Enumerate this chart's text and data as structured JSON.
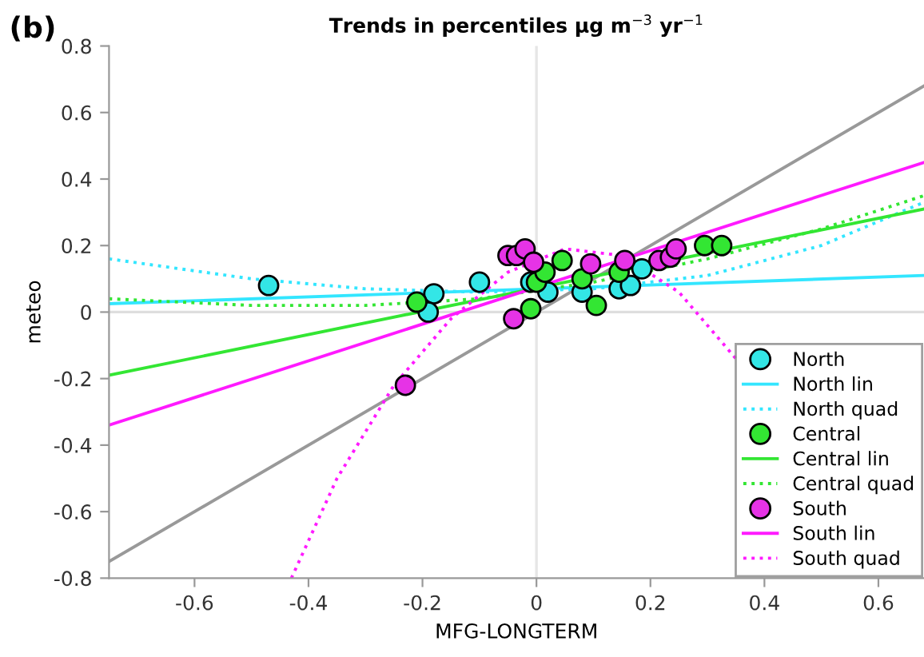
{
  "chart_data": {
    "type": "scatter",
    "title": "Trends in percentiles μg m$^{−3}$ yr$^{−1}$",
    "xlabel": "MFG-LONGTERM",
    "ylabel": "meteo",
    "annotations": [
      "(b)"
    ],
    "xlim": [
      -0.75,
      0.68
    ],
    "ylim": [
      -0.8,
      0.8
    ],
    "xticks": [
      -0.6,
      -0.4,
      -0.2,
      0,
      0.2,
      0.4,
      0.6
    ],
    "yticks": [
      -0.8,
      -0.6,
      -0.4,
      -0.2,
      0,
      0.2,
      0.4,
      0.6,
      0.8
    ],
    "grid": false,
    "legend": "bottom right",
    "marker": "circle",
    "ref_lines": [
      {
        "axis": "x",
        "value": 0,
        "color": "#e6e6e6"
      },
      {
        "axis": "y",
        "value": 0,
        "color": "#dedede"
      }
    ],
    "series": [
      {
        "type": "line",
        "color": "#999999",
        "line_style": "solid",
        "marker": "none",
        "x": [
          -0.75,
          0.68
        ],
        "values": [
          -0.75,
          0.68
        ]
      },
      {
        "name": "North",
        "color": "#33e6e6",
        "x": [
          -0.47,
          -0.18,
          -0.19,
          -0.1,
          -0.01,
          0.02,
          0.08,
          0.145,
          0.165,
          0.185
        ],
        "values": [
          0.08,
          0.055,
          0.0,
          0.09,
          0.09,
          0.06,
          0.06,
          0.07,
          0.08,
          0.13
        ]
      },
      {
        "name": "North lin",
        "type": "line",
        "color": "#33e6ff",
        "line_style": "solid",
        "marker": "none",
        "x": [
          -0.75,
          0.68
        ],
        "values": [
          0.025,
          0.11
        ]
      },
      {
        "name": "North quad",
        "type": "line",
        "color": "#33e6ff",
        "line_style": "dotted",
        "marker": "none",
        "x": [
          -0.75,
          -0.5,
          -0.3,
          -0.1,
          0.1,
          0.3,
          0.5,
          0.68
        ],
        "values": [
          0.16,
          0.1,
          0.07,
          0.06,
          0.07,
          0.11,
          0.2,
          0.33
        ]
      },
      {
        "name": "Central",
        "color": "#33e633",
        "x": [
          -0.21,
          -0.01,
          0.0,
          0.015,
          0.045,
          0.08,
          0.105,
          0.145,
          0.295,
          0.325
        ],
        "values": [
          0.03,
          0.01,
          0.09,
          0.12,
          0.155,
          0.1,
          0.02,
          0.12,
          0.2,
          0.2
        ]
      },
      {
        "name": "Central lin",
        "type": "line",
        "color": "#33e633",
        "line_style": "solid",
        "marker": "none",
        "x": [
          -0.75,
          0.68
        ],
        "values": [
          -0.19,
          0.31
        ]
      },
      {
        "name": "Central quad",
        "type": "line",
        "color": "#33e633",
        "line_style": "dotted",
        "marker": "none",
        "x": [
          -0.75,
          -0.5,
          -0.3,
          -0.1,
          0.1,
          0.3,
          0.5,
          0.68
        ],
        "values": [
          0.04,
          0.02,
          0.02,
          0.04,
          0.09,
          0.16,
          0.25,
          0.35
        ]
      },
      {
        "name": "South",
        "color": "#e633e6",
        "x": [
          -0.23,
          -0.04,
          -0.05,
          -0.035,
          -0.02,
          -0.005,
          0.095,
          0.155,
          0.215,
          0.235,
          0.245
        ],
        "values": [
          -0.22,
          -0.02,
          0.17,
          0.17,
          0.19,
          0.15,
          0.145,
          0.155,
          0.155,
          0.165,
          0.19
        ]
      },
      {
        "name": "South lin",
        "type": "line",
        "color": "#ff1aff",
        "line_style": "solid",
        "marker": "none",
        "x": [
          -0.75,
          0.68
        ],
        "values": [
          -0.34,
          0.45
        ]
      },
      {
        "name": "South quad",
        "type": "line",
        "color": "#ff1aff",
        "line_style": "dotted",
        "marker": "none",
        "x": [
          -0.43,
          -0.35,
          -0.25,
          -0.15,
          -0.05,
          0.05,
          0.15,
          0.25,
          0.35
        ],
        "values": [
          -0.8,
          -0.5,
          -0.22,
          -0.02,
          0.12,
          0.19,
          0.17,
          0.06,
          -0.14
        ]
      }
    ]
  }
}
